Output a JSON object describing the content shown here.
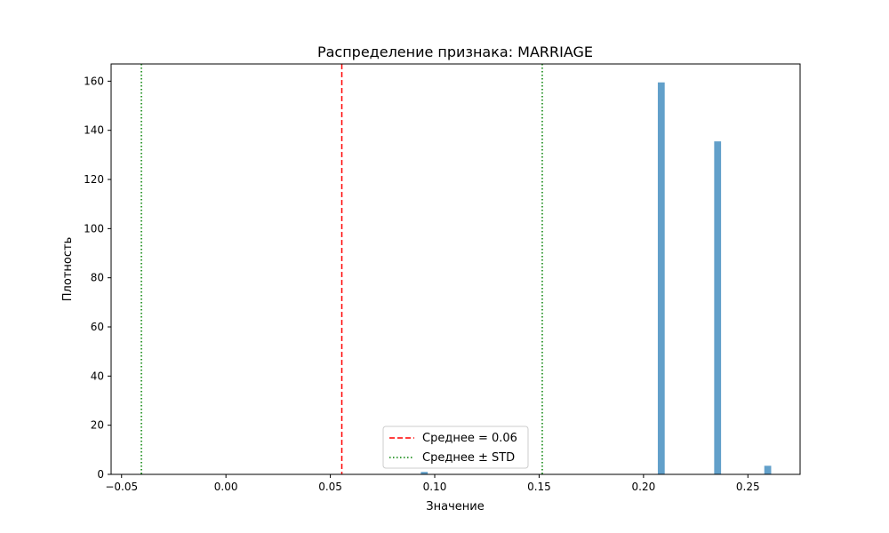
{
  "chart_data": {
    "type": "bar",
    "title": "Распределение признака: MARRIAGE",
    "xlabel": "Значение",
    "ylabel": "Плотность",
    "xlim": [
      -0.055,
      0.275
    ],
    "ylim": [
      0,
      167
    ],
    "grid": false,
    "legend_position": "lower center",
    "x_ticks": [
      -0.05,
      0.0,
      0.05,
      0.1,
      0.15,
      0.2,
      0.25
    ],
    "x_tick_labels": [
      "−0.05",
      "0.00",
      "0.05",
      "0.10",
      "0.15",
      "0.20",
      "0.25"
    ],
    "y_ticks": [
      0,
      20,
      40,
      60,
      80,
      100,
      120,
      140,
      160
    ],
    "y_tick_labels": [
      "0",
      "20",
      "40",
      "60",
      "80",
      "100",
      "120",
      "140",
      "160"
    ],
    "bin_width": 0.0033,
    "bars": [
      {
        "x": 0.095,
        "value": 1
      },
      {
        "x": 0.2085,
        "value": 159.5
      },
      {
        "x": 0.2355,
        "value": 135.5
      },
      {
        "x": 0.2595,
        "value": 3.5
      }
    ],
    "bar_color": "#1f77b4",
    "bar_opacity": 0.7,
    "lines": [
      {
        "x": 0.0555,
        "style": "dashed",
        "color": "#ff0000",
        "label": "Среднее = 0.06"
      },
      {
        "x": -0.0405,
        "style": "dotted",
        "color": "#008000",
        "label": "Среднее ± STD"
      },
      {
        "x": 0.1515,
        "style": "dotted",
        "color": "#008000",
        "label": ""
      }
    ]
  }
}
